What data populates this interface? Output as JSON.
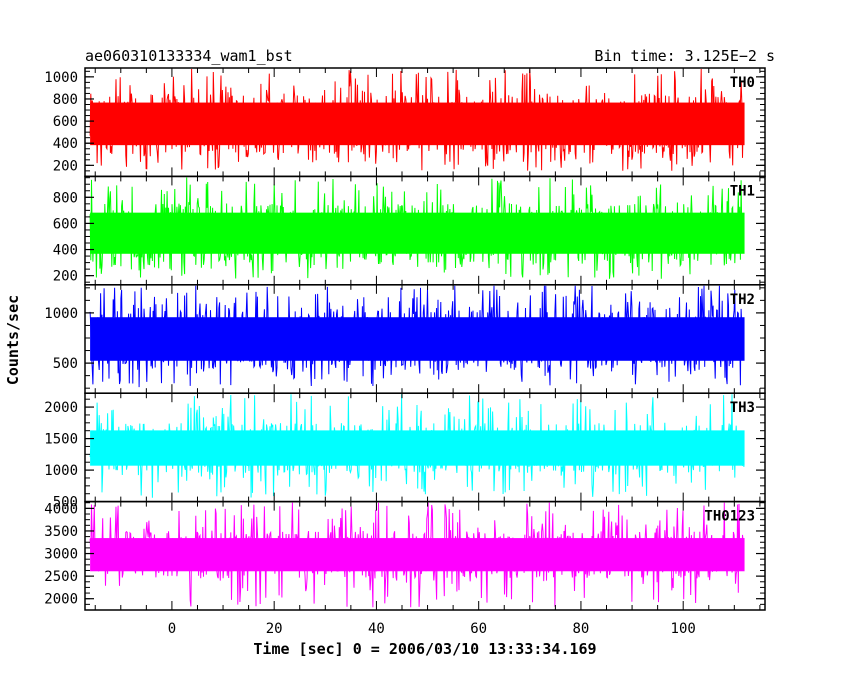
{
  "header": {
    "left_title": "ae060310133334_wam1_bst",
    "right_title": "Bin time: 3.125E−2 s"
  },
  "chart_data": {
    "type": "line",
    "xlabel": "Time [sec] 0 = 2006/03/10 13:33:34.169",
    "ylabel": "Counts/sec",
    "xlim": [
      -17,
      116
    ],
    "x_data_range": [
      -16,
      112
    ],
    "x_ticks": [
      0,
      20,
      40,
      60,
      80,
      100
    ],
    "panels": [
      {
        "name": "TH0",
        "color": "#ff0000",
        "ylim": [
          100,
          1080
        ],
        "y_ticks": [
          200,
          400,
          600,
          800,
          1000
        ],
        "base_mean": 550,
        "band_low": 300,
        "band_high": 850,
        "spike_min": 150,
        "spike_max": 1080
      },
      {
        "name": "TH1",
        "color": "#00ff00",
        "ylim": [
          130,
          960
        ],
        "y_ticks": [
          200,
          400,
          600,
          800
        ],
        "base_mean": 520,
        "band_low": 300,
        "band_high": 750,
        "spike_min": 170,
        "spike_max": 960
      },
      {
        "name": "TH2",
        "color": "#0000ff",
        "ylim": [
          200,
          1280
        ],
        "y_ticks": [
          500,
          1000
        ],
        "base_mean": 730,
        "band_low": 430,
        "band_high": 1050,
        "spike_min": 260,
        "spike_max": 1280
      },
      {
        "name": "TH3",
        "color": "#00ffff",
        "ylim": [
          500,
          2220
        ],
        "y_ticks": [
          500,
          1000,
          1500,
          2000
        ],
        "base_mean": 1350,
        "band_low": 950,
        "band_high": 1750,
        "spike_min": 560,
        "spike_max": 2220
      },
      {
        "name": "TH0123",
        "color": "#ff00ff",
        "ylim": [
          1750,
          4150
        ],
        "y_ticks": [
          2000,
          2500,
          3000,
          3500,
          4000
        ],
        "base_mean": 2950,
        "band_low": 2450,
        "band_high": 3500,
        "spike_min": 1800,
        "spike_max": 4150
      }
    ]
  }
}
